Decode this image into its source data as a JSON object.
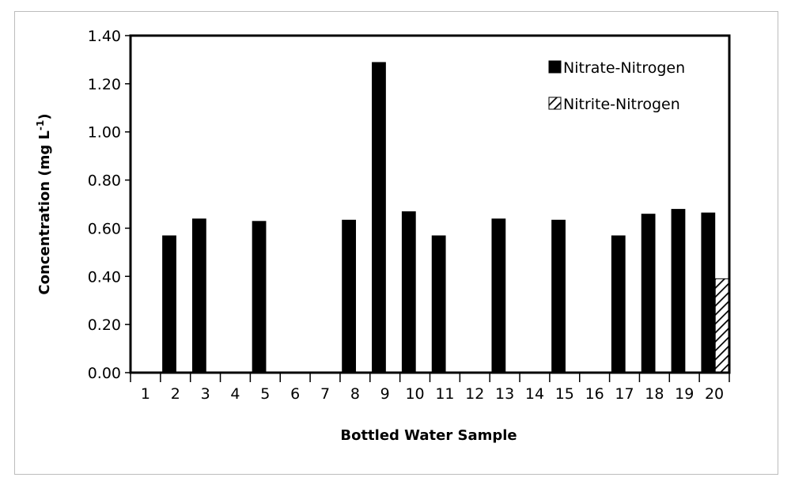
{
  "chart_data": {
    "type": "bar",
    "title": "",
    "xlabel": "Bottled Water Sample",
    "ylabel_main": "Concentration (mg L",
    "ylabel_sup": "-1",
    "ylabel_close": ")",
    "ylim": [
      0,
      1.4
    ],
    "yticks": [
      0.0,
      0.2,
      0.4,
      0.6,
      0.8,
      1.0,
      1.2,
      1.4
    ],
    "ytick_labels": [
      "0.00",
      "0.20",
      "0.40",
      "0.60",
      "0.80",
      "1.00",
      "1.20",
      "1.40"
    ],
    "categories": [
      "1",
      "2",
      "3",
      "4",
      "5",
      "6",
      "7",
      "8",
      "9",
      "10",
      "11",
      "12",
      "13",
      "14",
      "15",
      "16",
      "17",
      "18",
      "19",
      "20"
    ],
    "series": [
      {
        "name": "Nitrate-Nitrogen",
        "pattern": "solid",
        "values": [
          0,
          0.57,
          0.64,
          0,
          0.63,
          0,
          0,
          0.635,
          1.29,
          0.67,
          0.57,
          0,
          0.64,
          0,
          0.635,
          0,
          0.57,
          0.66,
          0.68,
          0.665
        ]
      },
      {
        "name": "Nitrite-Nitrogen",
        "pattern": "hatched",
        "values": [
          0,
          0,
          0,
          0,
          0,
          0,
          0,
          0,
          0,
          0,
          0,
          0,
          0,
          0,
          0,
          0,
          0,
          0,
          0,
          0.39
        ]
      }
    ],
    "legend_position": "top-right",
    "grid": false,
    "colors": {
      "bar": "#000000",
      "axis": "#000000",
      "frame": "#bcbcbc"
    }
  }
}
